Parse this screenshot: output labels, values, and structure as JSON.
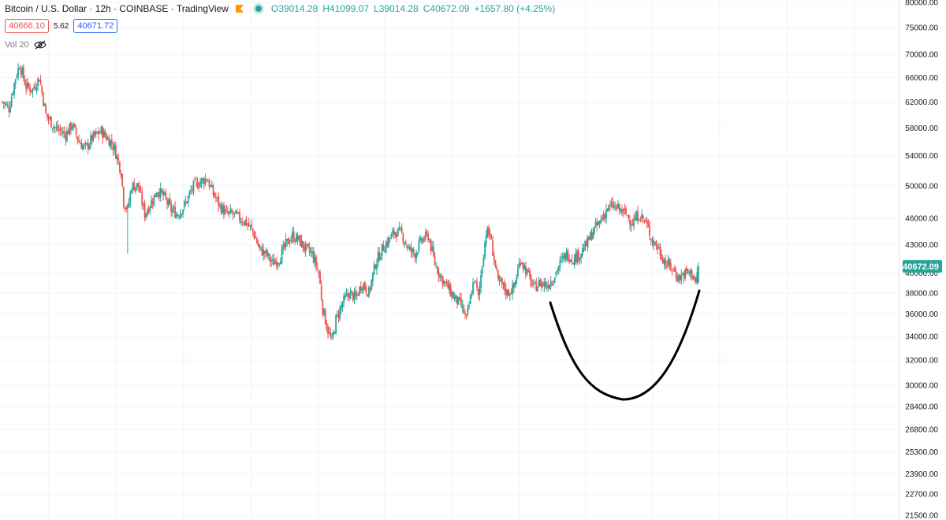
{
  "header": {
    "symbol_title": "Bitcoin / U.S. Dollar · 12h · COINBASE · TradingView",
    "open": "O39014.28",
    "high": "H41099.07",
    "low": "L39014.28",
    "close": "C40672.09",
    "change": "+1657.80 (+4.25%)",
    "sell_price": "40666.10",
    "spread": "5.62",
    "buy_price": "40671.72",
    "volume_label": "Vol 20"
  },
  "colors": {
    "up": "#26a69a",
    "down": "#ef5350",
    "last_price_tag": "#26a69a",
    "drawing": "#000000"
  },
  "chart_data": {
    "type": "candlestick",
    "scale": "log",
    "ylim": [
      21500,
      80000
    ],
    "grid": true,
    "y_tick_labels": [
      "80000.00",
      "75000.00",
      "70000.00",
      "66000.00",
      "62000.00",
      "58000.00",
      "54000.00",
      "50000.00",
      "46000.00",
      "43000.00",
      "40000.00",
      "38000.00",
      "36000.00",
      "34000.00",
      "32000.00",
      "30000.00",
      "28400.00",
      "26800.00",
      "25300.00",
      "23900.00",
      "22700.00",
      "21500.00"
    ],
    "last_price": "40672.09",
    "anchors": [
      [
        0,
        62000
      ],
      [
        5,
        61000
      ],
      [
        10,
        66000
      ],
      [
        13,
        68200
      ],
      [
        18,
        64500
      ],
      [
        23,
        64000
      ],
      [
        28,
        66000
      ],
      [
        33,
        60000
      ],
      [
        40,
        58000
      ],
      [
        48,
        57000
      ],
      [
        53,
        58500
      ],
      [
        58,
        56000
      ],
      [
        63,
        55000
      ],
      [
        68,
        56500
      ],
      [
        75,
        57500
      ],
      [
        82,
        56000
      ],
      [
        85,
        55000
      ],
      [
        90,
        52000
      ],
      [
        92,
        48000
      ],
      [
        95,
        47000
      ],
      [
        98,
        50000
      ],
      [
        103,
        50000
      ],
      [
        108,
        46500
      ],
      [
        113,
        48000
      ],
      [
        118,
        49500
      ],
      [
        123,
        48500
      ],
      [
        128,
        47000
      ],
      [
        133,
        46500
      ],
      [
        138,
        47500
      ],
      [
        145,
        50000
      ],
      [
        150,
        50500
      ],
      [
        155,
        51000
      ],
      [
        160,
        49000
      ],
      [
        165,
        47500
      ],
      [
        170,
        46500
      ],
      [
        175,
        46500
      ],
      [
        180,
        46000
      ],
      [
        185,
        45500
      ],
      [
        190,
        44500
      ],
      [
        195,
        42500
      ],
      [
        200,
        42000
      ],
      [
        205,
        41000
      ],
      [
        210,
        41500
      ],
      [
        215,
        43000
      ],
      [
        220,
        44000
      ],
      [
        225,
        43500
      ],
      [
        230,
        42500
      ],
      [
        235,
        42000
      ],
      [
        240,
        40000
      ],
      [
        243,
        36500
      ],
      [
        247,
        34500
      ],
      [
        250,
        33500
      ],
      [
        253,
        35500
      ],
      [
        258,
        37000
      ],
      [
        263,
        38000
      ],
      [
        268,
        37500
      ],
      [
        273,
        39000
      ],
      [
        278,
        38000
      ],
      [
        283,
        41000
      ],
      [
        288,
        42500
      ],
      [
        293,
        43500
      ],
      [
        298,
        44500
      ],
      [
        303,
        44200
      ],
      [
        308,
        42500
      ],
      [
        313,
        42000
      ],
      [
        318,
        43500
      ],
      [
        323,
        44000
      ],
      [
        328,
        41000
      ],
      [
        333,
        39500
      ],
      [
        338,
        38500
      ],
      [
        343,
        37500
      ],
      [
        348,
        36800
      ],
      [
        352,
        35500
      ],
      [
        355,
        37500
      ],
      [
        358,
        39500
      ],
      [
        361,
        37500
      ],
      [
        364,
        41000
      ],
      [
        367,
        44500
      ],
      [
        370,
        44000
      ],
      [
        373,
        41500
      ],
      [
        376,
        39000
      ],
      [
        379,
        38800
      ],
      [
        383,
        38000
      ],
      [
        388,
        38500
      ],
      [
        393,
        41500
      ],
      [
        398,
        40000
      ],
      [
        403,
        38500
      ],
      [
        408,
        39000
      ],
      [
        413,
        38800
      ],
      [
        418,
        39500
      ],
      [
        423,
        41000
      ],
      [
        428,
        42000
      ],
      [
        433,
        41500
      ],
      [
        438,
        42000
      ],
      [
        443,
        43000
      ],
      [
        448,
        44500
      ],
      [
        453,
        45500
      ],
      [
        458,
        47000
      ],
      [
        463,
        47500
      ],
      [
        468,
        47000
      ],
      [
        473,
        46500
      ],
      [
        478,
        45500
      ],
      [
        483,
        46500
      ],
      [
        488,
        45500
      ],
      [
        493,
        43500
      ],
      [
        498,
        42500
      ],
      [
        503,
        41000
      ],
      [
        508,
        40500
      ],
      [
        513,
        39500
      ],
      [
        518,
        40000
      ],
      [
        523,
        40000
      ],
      [
        526,
        39000
      ],
      [
        528,
        40672.09
      ]
    ]
  }
}
